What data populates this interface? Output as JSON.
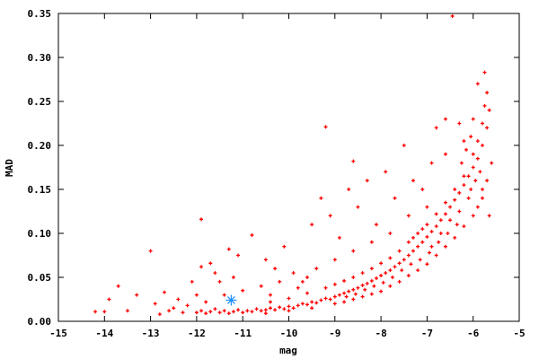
{
  "chart_data": {
    "type": "scatter",
    "title": "",
    "xlabel": "mag",
    "ylabel": "MAD",
    "xlim": [
      -15,
      -5
    ],
    "ylim": [
      0,
      0.35
    ],
    "xticks": [
      "-15",
      "-14",
      "-13",
      "-12",
      "-11",
      "-10",
      "-9",
      "-8",
      "-7",
      "-6",
      "-5"
    ],
    "yticks": [
      "0.00",
      "0.05",
      "0.10",
      "0.15",
      "0.20",
      "0.25",
      "0.30",
      "0.35"
    ],
    "grid": false,
    "colors": {
      "points": "#ff0000",
      "highlight": "#1e90ff",
      "axes": "#000000"
    },
    "series": [
      {
        "marker": "plus",
        "color": "#ff0000",
        "points": [
          [
            -12.0,
            0.01
          ],
          [
            -11.9,
            0.012
          ],
          [
            -11.8,
            0.009
          ],
          [
            -11.7,
            0.011
          ],
          [
            -11.6,
            0.014
          ],
          [
            -11.5,
            0.01
          ],
          [
            -11.4,
            0.012
          ],
          [
            -11.3,
            0.009
          ],
          [
            -11.2,
            0.011
          ],
          [
            -11.1,
            0.013
          ],
          [
            -11.0,
            0.01
          ],
          [
            -10.9,
            0.012
          ],
          [
            -10.8,
            0.011
          ],
          [
            -10.7,
            0.014
          ],
          [
            -10.6,
            0.012
          ],
          [
            -10.5,
            0.013
          ],
          [
            -10.4,
            0.015
          ],
          [
            -10.3,
            0.013
          ],
          [
            -10.2,
            0.016
          ],
          [
            -10.1,
            0.014
          ],
          [
            -10.0,
            0.017
          ],
          [
            -9.9,
            0.015
          ],
          [
            -9.8,
            0.018
          ],
          [
            -9.7,
            0.02
          ],
          [
            -9.6,
            0.019
          ],
          [
            -9.5,
            0.022
          ],
          [
            -9.4,
            0.021
          ],
          [
            -9.3,
            0.024
          ],
          [
            -9.2,
            0.026
          ],
          [
            -9.1,
            0.025
          ],
          [
            -9.0,
            0.028
          ],
          [
            -8.9,
            0.03
          ],
          [
            -8.8,
            0.032
          ],
          [
            -8.7,
            0.034
          ],
          [
            -8.6,
            0.036
          ],
          [
            -8.5,
            0.038
          ],
          [
            -8.4,
            0.041
          ],
          [
            -8.3,
            0.043
          ],
          [
            -8.2,
            0.046
          ],
          [
            -8.1,
            0.049
          ],
          [
            -8.0,
            0.052
          ],
          [
            -7.9,
            0.055
          ],
          [
            -7.8,
            0.058
          ],
          [
            -7.7,
            0.062
          ],
          [
            -7.6,
            0.066
          ],
          [
            -7.5,
            0.07
          ],
          [
            -7.4,
            0.075
          ],
          [
            -7.3,
            0.08
          ],
          [
            -7.2,
            0.085
          ],
          [
            -7.1,
            0.09
          ],
          [
            -7.0,
            0.096
          ],
          [
            -6.9,
            0.102
          ],
          [
            -6.8,
            0.108
          ],
          [
            -6.7,
            0.115
          ],
          [
            -6.6,
            0.122
          ],
          [
            -6.5,
            0.13
          ],
          [
            -6.4,
            0.138
          ],
          [
            -6.3,
            0.146
          ],
          [
            -6.2,
            0.155
          ],
          [
            -6.1,
            0.165
          ],
          [
            -6.0,
            0.175
          ],
          [
            -5.9,
            0.185
          ],
          [
            -5.8,
            0.2
          ],
          [
            -5.7,
            0.22
          ],
          [
            -10.5,
            0.009
          ],
          [
            -10.0,
            0.012
          ],
          [
            -9.5,
            0.015
          ],
          [
            -9.0,
            0.02
          ],
          [
            -8.8,
            0.022
          ],
          [
            -8.6,
            0.025
          ],
          [
            -8.4,
            0.028
          ],
          [
            -8.2,
            0.031
          ],
          [
            -8.0,
            0.034
          ],
          [
            -7.8,
            0.04
          ],
          [
            -7.6,
            0.045
          ],
          [
            -7.4,
            0.052
          ],
          [
            -7.2,
            0.058
          ],
          [
            -7.0,
            0.065
          ],
          [
            -6.8,
            0.075
          ],
          [
            -6.6,
            0.085
          ],
          [
            -6.4,
            0.095
          ],
          [
            -6.2,
            0.108
          ],
          [
            -6.0,
            0.12
          ],
          [
            -5.8,
            0.14
          ],
          [
            -5.7,
            0.16
          ],
          [
            -10.4,
            0.022
          ],
          [
            -10.0,
            0.026
          ],
          [
            -9.6,
            0.032
          ],
          [
            -9.2,
            0.038
          ],
          [
            -9.0,
            0.042
          ],
          [
            -8.8,
            0.046
          ],
          [
            -8.6,
            0.05
          ],
          [
            -8.4,
            0.055
          ],
          [
            -8.2,
            0.06
          ],
          [
            -8.0,
            0.066
          ],
          [
            -7.8,
            0.072
          ],
          [
            -7.6,
            0.08
          ],
          [
            -7.4,
            0.09
          ],
          [
            -7.2,
            0.1
          ],
          [
            -7.0,
            0.11
          ],
          [
            -6.8,
            0.122
          ],
          [
            -6.6,
            0.135
          ],
          [
            -6.4,
            0.15
          ],
          [
            -6.2,
            0.165
          ],
          [
            -6.0,
            0.19
          ],
          [
            -5.9,
            0.205
          ],
          [
            -5.8,
            0.225
          ],
          [
            -5.75,
            0.245
          ],
          [
            -7.3,
            0.095
          ],
          [
            -7.1,
            0.105
          ],
          [
            -6.9,
            0.085
          ],
          [
            -6.7,
            0.1
          ],
          [
            -6.5,
            0.115
          ],
          [
            -6.3,
            0.125
          ],
          [
            -6.1,
            0.14
          ],
          [
            -5.95,
            0.16
          ],
          [
            -5.85,
            0.17
          ],
          [
            -6.25,
            0.18
          ],
          [
            -6.15,
            0.195
          ],
          [
            -6.05,
            0.15
          ],
          [
            -5.9,
            0.13
          ],
          [
            -6.35,
            0.11
          ],
          [
            -6.55,
            0.1
          ],
          [
            -6.75,
            0.09
          ],
          [
            -6.95,
            0.078
          ],
          [
            -7.15,
            0.07
          ],
          [
            -7.35,
            0.065
          ],
          [
            -7.55,
            0.058
          ],
          [
            -7.75,
            0.05
          ],
          [
            -7.95,
            0.044
          ],
          [
            -8.15,
            0.04
          ],
          [
            -8.35,
            0.036
          ],
          [
            -8.55,
            0.031
          ],
          [
            -8.75,
            0.028
          ],
          [
            -6.45,
            0.347
          ],
          [
            -9.2,
            0.221
          ],
          [
            -6.6,
            0.19
          ],
          [
            -8.6,
            0.182
          ],
          [
            -11.9,
            0.116
          ],
          [
            -13.0,
            0.08
          ],
          [
            -14.2,
            0.011
          ],
          [
            -14.0,
            0.011
          ],
          [
            -13.9,
            0.025
          ],
          [
            -13.7,
            0.04
          ],
          [
            -13.5,
            0.012
          ],
          [
            -13.3,
            0.03
          ],
          [
            -12.9,
            0.02
          ],
          [
            -12.7,
            0.033
          ],
          [
            -12.5,
            0.015
          ],
          [
            -12.4,
            0.025
          ],
          [
            -12.3,
            0.01
          ],
          [
            -12.1,
            0.045
          ],
          [
            -11.9,
            0.062
          ],
          [
            -11.7,
            0.066
          ],
          [
            -11.6,
            0.055
          ],
          [
            -11.5,
            0.045
          ],
          [
            -11.3,
            0.082
          ],
          [
            -11.1,
            0.075
          ],
          [
            -10.8,
            0.098
          ],
          [
            -10.5,
            0.07
          ],
          [
            -10.3,
            0.06
          ],
          [
            -10.1,
            0.085
          ],
          [
            -9.9,
            0.055
          ],
          [
            -9.7,
            0.045
          ],
          [
            -9.5,
            0.11
          ],
          [
            -9.3,
            0.14
          ],
          [
            -9.1,
            0.12
          ],
          [
            -8.9,
            0.095
          ],
          [
            -8.7,
            0.15
          ],
          [
            -8.5,
            0.13
          ],
          [
            -8.3,
            0.16
          ],
          [
            -8.1,
            0.11
          ],
          [
            -7.9,
            0.17
          ],
          [
            -7.7,
            0.14
          ],
          [
            -7.5,
            0.2
          ],
          [
            -7.3,
            0.16
          ],
          [
            -7.1,
            0.15
          ],
          [
            -6.9,
            0.18
          ],
          [
            -6.8,
            0.22
          ],
          [
            -6.6,
            0.23
          ],
          [
            -6.3,
            0.225
          ],
          [
            -6.2,
            0.205
          ],
          [
            -5.9,
            0.27
          ],
          [
            -5.75,
            0.283
          ],
          [
            -5.7,
            0.26
          ],
          [
            -5.65,
            0.24
          ],
          [
            -5.6,
            0.18
          ],
          [
            -5.65,
            0.12
          ],
          [
            -5.8,
            0.15
          ],
          [
            -6.0,
            0.23
          ],
          [
            -6.05,
            0.21
          ],
          [
            -12.8,
            0.008
          ],
          [
            -12.6,
            0.012
          ],
          [
            -12.2,
            0.018
          ],
          [
            -11.8,
            0.022
          ],
          [
            -11.4,
            0.03
          ],
          [
            -11.0,
            0.035
          ],
          [
            -10.6,
            0.04
          ],
          [
            -10.2,
            0.045
          ],
          [
            -9.8,
            0.038
          ],
          [
            -9.4,
            0.06
          ],
          [
            -9.0,
            0.07
          ],
          [
            -8.6,
            0.08
          ],
          [
            -8.2,
            0.09
          ],
          [
            -7.8,
            0.1
          ],
          [
            -7.4,
            0.12
          ],
          [
            -7.0,
            0.13
          ],
          [
            -12.0,
            0.03
          ],
          [
            -11.2,
            0.05
          ],
          [
            -10.4,
            0.03
          ],
          [
            -9.6,
            0.05
          ]
        ]
      },
      {
        "marker": "star",
        "color": "#1e90ff",
        "points": [
          [
            -11.25,
            0.024
          ]
        ]
      }
    ]
  }
}
